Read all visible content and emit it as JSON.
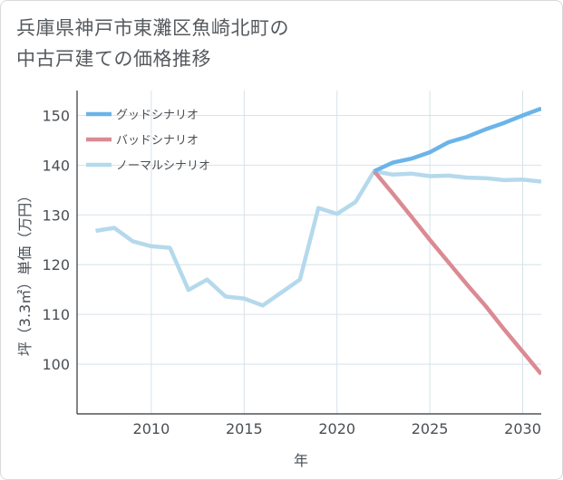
{
  "title_lines": [
    "兵庫県神戸市東灘区魚崎北町の",
    "中古戸建ての価格推移"
  ],
  "chart_data": {
    "type": "line",
    "title": "兵庫県神戸市東灘区魚崎北町の中古戸建ての価格推移",
    "xlabel": "年",
    "ylabel": "坪（3.3㎡）単価（万円）",
    "xlim": [
      2006,
      2031
    ],
    "ylim": [
      90,
      155
    ],
    "xticks": [
      2010,
      2015,
      2020,
      2025,
      2030
    ],
    "yticks": [
      100,
      110,
      120,
      130,
      140,
      150
    ],
    "grid": true,
    "legend_position": "top-left",
    "series": [
      {
        "name": "グッドシナリオ",
        "color": "#6cb4e8",
        "x": [
          2022,
          2023,
          2024,
          2025,
          2026,
          2027,
          2028,
          2029,
          2030,
          2031
        ],
        "y": [
          138.8,
          140.5,
          141.3,
          142.6,
          144.6,
          145.7,
          147.2,
          148.5,
          150.0,
          151.4
        ]
      },
      {
        "name": "バッドシナリオ",
        "color": "#db8a93",
        "x": [
          2022,
          2023,
          2024,
          2025,
          2026,
          2027,
          2028,
          2029,
          2030,
          2031
        ],
        "y": [
          138.8,
          134.3,
          129.7,
          125.0,
          120.5,
          116.0,
          111.7,
          107.0,
          102.5,
          98.0
        ]
      },
      {
        "name": "ノーマルシナリオ",
        "color": "#b5d9ec",
        "x": [
          2007,
          2008,
          2009,
          2010,
          2011,
          2012,
          2013,
          2014,
          2015,
          2016,
          2017,
          2018,
          2019,
          2020,
          2021,
          2022,
          2023,
          2024,
          2025,
          2026,
          2027,
          2028,
          2029,
          2030,
          2031
        ],
        "y": [
          126.8,
          127.4,
          124.7,
          123.7,
          123.4,
          114.9,
          117.0,
          113.6,
          113.2,
          111.8,
          114.4,
          117.0,
          131.4,
          130.2,
          132.6,
          138.8,
          138.1,
          138.3,
          137.8,
          137.9,
          137.5,
          137.4,
          137.0,
          137.1,
          136.7
        ]
      }
    ]
  }
}
